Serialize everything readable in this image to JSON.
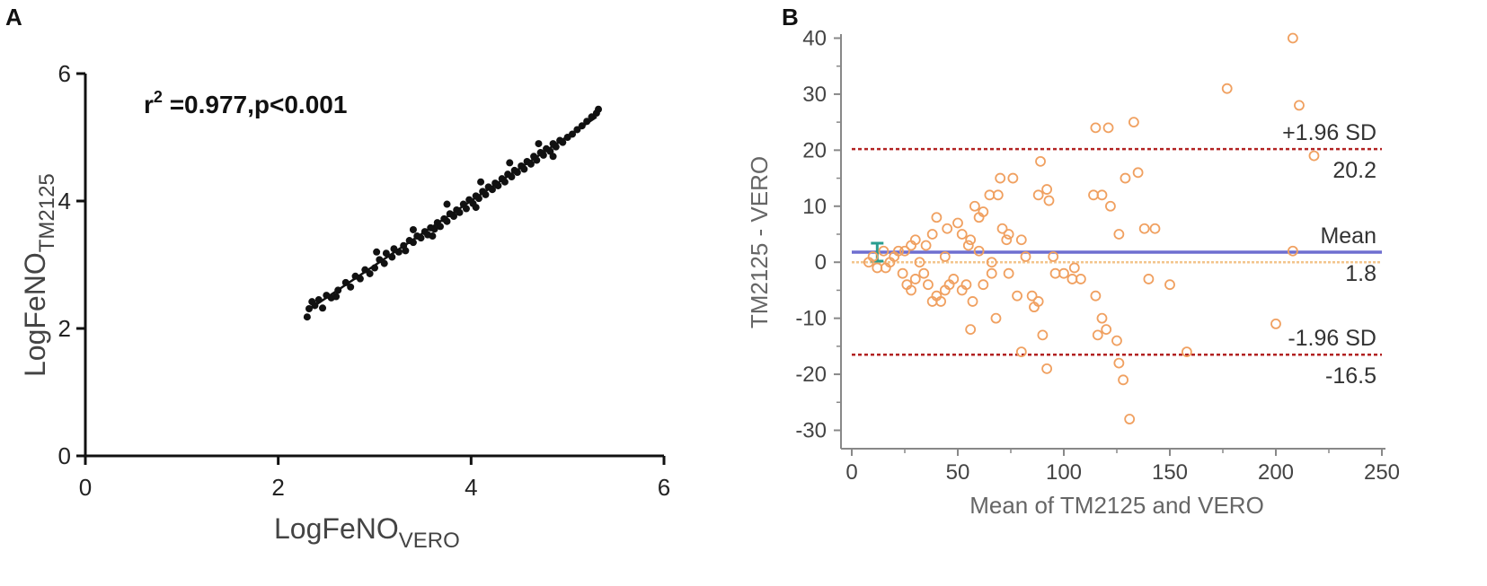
{
  "panels": {
    "a": "A",
    "b": "B"
  },
  "chart_data": [
    {
      "type": "scatter",
      "title": "",
      "annotation": {
        "r": "r",
        "sup": "2",
        "rest": " =0.977,p<0.001"
      },
      "xlabel": {
        "main": "LogFeNO",
        "sub": "VERO"
      },
      "ylabel": {
        "main": "LogFeNO",
        "sub": "TM2125"
      },
      "xlim": [
        0,
        6
      ],
      "ylim": [
        0,
        6
      ],
      "xticks": [
        "0",
        "2",
        "4",
        "6"
      ],
      "yticks": [
        "0",
        "2",
        "4",
        "6"
      ],
      "points": [
        [
          2.3,
          2.18
        ],
        [
          2.32,
          2.31
        ],
        [
          2.35,
          2.42
        ],
        [
          2.38,
          2.36
        ],
        [
          2.42,
          2.45
        ],
        [
          2.46,
          2.32
        ],
        [
          2.5,
          2.52
        ],
        [
          2.55,
          2.48
        ],
        [
          2.62,
          2.6
        ],
        [
          2.7,
          2.72
        ],
        [
          2.75,
          2.65
        ],
        [
          2.8,
          2.82
        ],
        [
          2.85,
          2.78
        ],
        [
          2.9,
          2.92
        ],
        [
          2.95,
          2.86
        ],
        [
          3.0,
          2.95
        ],
        [
          3.05,
          3.08
        ],
        [
          3.1,
          3.02
        ],
        [
          3.12,
          3.18
        ],
        [
          3.18,
          3.12
        ],
        [
          3.2,
          3.25
        ],
        [
          3.25,
          3.2
        ],
        [
          3.3,
          3.3
        ],
        [
          3.32,
          3.22
        ],
        [
          3.36,
          3.38
        ],
        [
          3.4,
          3.35
        ],
        [
          3.44,
          3.45
        ],
        [
          3.48,
          3.42
        ],
        [
          3.52,
          3.52
        ],
        [
          3.55,
          3.47
        ],
        [
          3.58,
          3.58
        ],
        [
          3.62,
          3.56
        ],
        [
          3.65,
          3.66
        ],
        [
          3.68,
          3.6
        ],
        [
          3.72,
          3.72
        ],
        [
          3.75,
          3.68
        ],
        [
          3.78,
          3.8
        ],
        [
          3.82,
          3.76
        ],
        [
          3.85,
          3.86
        ],
        [
          3.88,
          3.82
        ],
        [
          3.92,
          3.95
        ],
        [
          3.95,
          3.88
        ],
        [
          3.98,
          4.02
        ],
        [
          4.02,
          3.96
        ],
        [
          4.05,
          4.08
        ],
        [
          4.08,
          4.04
        ],
        [
          4.12,
          4.15
        ],
        [
          4.15,
          4.1
        ],
        [
          4.18,
          4.22
        ],
        [
          4.22,
          4.18
        ],
        [
          4.25,
          4.28
        ],
        [
          4.28,
          4.24
        ],
        [
          4.32,
          4.35
        ],
        [
          4.35,
          4.3
        ],
        [
          4.38,
          4.42
        ],
        [
          4.42,
          4.38
        ],
        [
          4.45,
          4.48
        ],
        [
          4.48,
          4.45
        ],
        [
          4.52,
          4.55
        ],
        [
          4.55,
          4.5
        ],
        [
          4.58,
          4.62
        ],
        [
          4.62,
          4.58
        ],
        [
          4.65,
          4.7
        ],
        [
          4.68,
          4.64
        ],
        [
          4.72,
          4.76
        ],
        [
          4.75,
          4.72
        ],
        [
          4.78,
          4.82
        ],
        [
          4.82,
          4.78
        ],
        [
          4.85,
          4.9
        ],
        [
          4.88,
          4.85
        ],
        [
          4.92,
          4.95
        ],
        [
          4.95,
          4.92
        ],
        [
          5.0,
          5.0
        ],
        [
          5.05,
          5.05
        ],
        [
          5.1,
          5.12
        ],
        [
          5.15,
          5.18
        ],
        [
          5.2,
          5.25
        ],
        [
          5.25,
          5.32
        ],
        [
          5.3,
          5.38
        ],
        [
          5.32,
          5.44
        ],
        [
          3.02,
          3.2
        ],
        [
          3.4,
          3.55
        ],
        [
          3.75,
          3.95
        ],
        [
          4.1,
          4.3
        ],
        [
          4.4,
          4.6
        ],
        [
          4.7,
          4.9
        ],
        [
          4.05,
          3.9
        ],
        [
          3.6,
          3.45
        ],
        [
          2.6,
          2.5
        ],
        [
          4.85,
          4.7
        ]
      ],
      "fit_line": {
        "x": [
          2.3,
          5.3
        ],
        "y": [
          2.28,
          5.32
        ]
      }
    },
    {
      "type": "scatter",
      "title": "",
      "xlabel": "Mean of TM2125 and VERO",
      "ylabel": "TM2125 - VERO",
      "xlim": [
        0,
        250
      ],
      "ylim": [
        -32,
        42
      ],
      "xticks": [
        "0",
        "50",
        "100",
        "150",
        "200",
        "250"
      ],
      "yticks": [
        "40",
        "30",
        "20",
        "10",
        "0",
        "-10",
        "-20",
        "-30"
      ],
      "lines": {
        "upper": {
          "label": "+1.96 SD",
          "value_label": "20.2",
          "value": 20.2,
          "color": "#b22222"
        },
        "mean": {
          "label": "Mean",
          "value_label": "1.8",
          "value": 1.8,
          "color": "#6f6fd0"
        },
        "lower": {
          "label": "-1.96 SD",
          "value_label": "-16.5",
          "value": -16.5,
          "color": "#b22222"
        },
        "zero": {
          "value": 0,
          "color": "#f3c58c"
        }
      },
      "mean_ci": {
        "x": 12,
        "low": 0.2,
        "high": 3.4,
        "color": "#2a9d8f"
      },
      "points": [
        [
          208,
          40
        ],
        [
          177,
          31
        ],
        [
          211,
          28
        ],
        [
          218,
          19
        ],
        [
          133,
          25
        ],
        [
          115,
          24
        ],
        [
          121,
          24
        ],
        [
          89,
          18
        ],
        [
          76,
          15
        ],
        [
          70,
          15
        ],
        [
          114,
          12
        ],
        [
          118,
          12
        ],
        [
          129,
          15
        ],
        [
          135,
          16
        ],
        [
          65,
          12
        ],
        [
          69,
          12
        ],
        [
          88,
          12
        ],
        [
          92,
          13
        ],
        [
          93,
          11
        ],
        [
          122,
          10
        ],
        [
          58,
          10
        ],
        [
          60,
          8
        ],
        [
          62,
          9
        ],
        [
          40,
          8
        ],
        [
          45,
          6
        ],
        [
          50,
          7
        ],
        [
          52,
          5
        ],
        [
          55,
          3
        ],
        [
          56,
          4
        ],
        [
          60,
          2
        ],
        [
          71,
          6
        ],
        [
          73,
          4
        ],
        [
          74,
          5
        ],
        [
          80,
          4
        ],
        [
          38,
          5
        ],
        [
          35,
          3
        ],
        [
          30,
          4
        ],
        [
          28,
          3
        ],
        [
          25,
          2
        ],
        [
          22,
          2
        ],
        [
          20,
          1
        ],
        [
          15,
          2
        ],
        [
          10,
          1
        ],
        [
          8,
          0
        ],
        [
          12,
          -1
        ],
        [
          16,
          -1
        ],
        [
          18,
          0
        ],
        [
          24,
          -2
        ],
        [
          26,
          -4
        ],
        [
          28,
          -5
        ],
        [
          30,
          -3
        ],
        [
          34,
          -2
        ],
        [
          36,
          -4
        ],
        [
          38,
          -7
        ],
        [
          40,
          -6
        ],
        [
          42,
          -7
        ],
        [
          44,
          -5
        ],
        [
          46,
          -4
        ],
        [
          48,
          -3
        ],
        [
          52,
          -5
        ],
        [
          54,
          -4
        ],
        [
          56,
          -12
        ],
        [
          57,
          -7
        ],
        [
          62,
          -4
        ],
        [
          66,
          -2
        ],
        [
          68,
          -10
        ],
        [
          74,
          -2
        ],
        [
          78,
          -6
        ],
        [
          80,
          -16
        ],
        [
          85,
          -6
        ],
        [
          86,
          -8
        ],
        [
          88,
          -7
        ],
        [
          90,
          -13
        ],
        [
          92,
          -19
        ],
        [
          96,
          -2
        ],
        [
          100,
          -2
        ],
        [
          104,
          -3
        ],
        [
          108,
          -3
        ],
        [
          115,
          -6
        ],
        [
          116,
          -13
        ],
        [
          118,
          -10
        ],
        [
          120,
          -12
        ],
        [
          125,
          -14
        ],
        [
          126,
          -18
        ],
        [
          128,
          -21
        ],
        [
          131,
          -28
        ],
        [
          140,
          -3
        ],
        [
          150,
          -4
        ],
        [
          158,
          -16
        ],
        [
          200,
          -11
        ],
        [
          208,
          2
        ],
        [
          138,
          6
        ],
        [
          143,
          6
        ],
        [
          126,
          5
        ],
        [
          105,
          -1
        ],
        [
          95,
          1
        ],
        [
          82,
          1
        ],
        [
          66,
          0
        ],
        [
          44,
          1
        ],
        [
          32,
          0
        ]
      ]
    }
  ]
}
